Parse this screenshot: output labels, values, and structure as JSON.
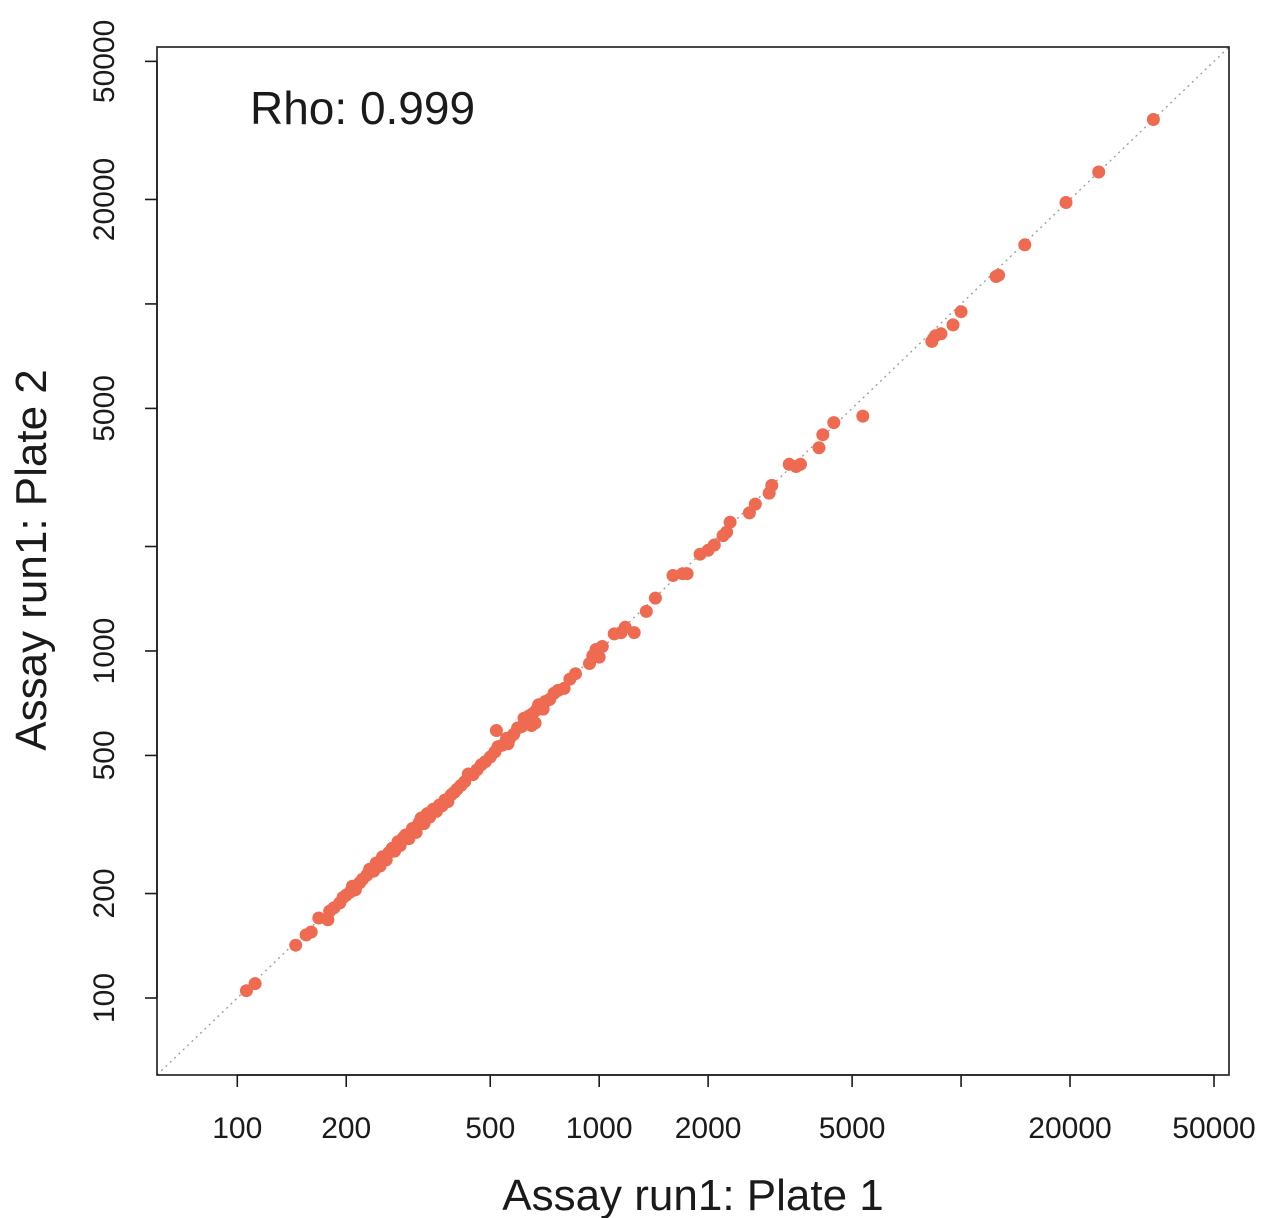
{
  "chart_data": {
    "type": "scatter",
    "xlabel": "Assay run1: Plate 1",
    "ylabel": "Assay run1: Plate 2",
    "annotation": "Rho: 0.999",
    "x_scale": "log",
    "y_scale": "log",
    "xlim": [
      60,
      55000
    ],
    "ylim": [
      60,
      55000
    ],
    "x_ticks": [
      100,
      200,
      500,
      1000,
      2000,
      5000,
      10000,
      20000,
      50000
    ],
    "x_tick_labels": [
      "100",
      "200",
      "500",
      "1000",
      "2000",
      "5000",
      "",
      "20000",
      "50000"
    ],
    "y_ticks": [
      100,
      200,
      500,
      1000,
      2000,
      5000,
      10000,
      20000,
      50000
    ],
    "y_tick_labels": [
      "100",
      "200",
      "500",
      "1000",
      "",
      "5000",
      "",
      "20000",
      "50000"
    ],
    "reference_line": "y = x (dotted)",
    "grid": false,
    "point_color": "#ee6a50",
    "points": [
      [
        106,
        105
      ],
      [
        112,
        110
      ],
      [
        145,
        142
      ],
      [
        155,
        152
      ],
      [
        160,
        155
      ],
      [
        168,
        170
      ],
      [
        178,
        168
      ],
      [
        180,
        178
      ],
      [
        185,
        182
      ],
      [
        192,
        188
      ],
      [
        196,
        195
      ],
      [
        200,
        198
      ],
      [
        205,
        202
      ],
      [
        208,
        210
      ],
      [
        212,
        205
      ],
      [
        218,
        215
      ],
      [
        222,
        220
      ],
      [
        228,
        226
      ],
      [
        232,
        235
      ],
      [
        238,
        232
      ],
      [
        242,
        245
      ],
      [
        248,
        240
      ],
      [
        252,
        255
      ],
      [
        258,
        250
      ],
      [
        262,
        262
      ],
      [
        268,
        270
      ],
      [
        272,
        265
      ],
      [
        278,
        282
      ],
      [
        282,
        275
      ],
      [
        288,
        290
      ],
      [
        292,
        295
      ],
      [
        298,
        288
      ],
      [
        305,
        308
      ],
      [
        312,
        300
      ],
      [
        318,
        320
      ],
      [
        322,
        330
      ],
      [
        328,
        318
      ],
      [
        335,
        340
      ],
      [
        340,
        332
      ],
      [
        348,
        350
      ],
      [
        355,
        345
      ],
      [
        362,
        360
      ],
      [
        368,
        358
      ],
      [
        375,
        372
      ],
      [
        382,
        368
      ],
      [
        390,
        385
      ],
      [
        398,
        392
      ],
      [
        405,
        400
      ],
      [
        415,
        410
      ],
      [
        425,
        420
      ],
      [
        435,
        442
      ],
      [
        448,
        440
      ],
      [
        460,
        455
      ],
      [
        472,
        470
      ],
      [
        485,
        480
      ],
      [
        500,
        495
      ],
      [
        515,
        512
      ],
      [
        525,
        530
      ],
      [
        540,
        535
      ],
      [
        555,
        560
      ],
      [
        565,
        558
      ],
      [
        580,
        575
      ],
      [
        595,
        600
      ],
      [
        610,
        605
      ],
      [
        625,
        620
      ],
      [
        640,
        650
      ],
      [
        655,
        660
      ],
      [
        670,
        675
      ],
      [
        690,
        700
      ],
      [
        710,
        715
      ],
      [
        730,
        725
      ],
      [
        750,
        755
      ],
      [
        520,
        590
      ],
      [
        560,
        540
      ],
      [
        620,
        640
      ],
      [
        650,
        610
      ],
      [
        665,
        620
      ],
      [
        680,
        700
      ],
      [
        700,
        680
      ],
      [
        770,
        770
      ],
      [
        800,
        780
      ],
      [
        830,
        830
      ],
      [
        860,
        860
      ],
      [
        940,
        920
      ],
      [
        960,
        970
      ],
      [
        980,
        1010
      ],
      [
        1000,
        960
      ],
      [
        1020,
        1030
      ],
      [
        1100,
        1120
      ],
      [
        1150,
        1130
      ],
      [
        1180,
        1170
      ],
      [
        1250,
        1130
      ],
      [
        1350,
        1300
      ],
      [
        1430,
        1420
      ],
      [
        1600,
        1650
      ],
      [
        1700,
        1670
      ],
      [
        1750,
        1670
      ],
      [
        1900,
        1900
      ],
      [
        2000,
        1950
      ],
      [
        2080,
        2020
      ],
      [
        2200,
        2150
      ],
      [
        2250,
        2200
      ],
      [
        2300,
        2350
      ],
      [
        2600,
        2500
      ],
      [
        2700,
        2650
      ],
      [
        2950,
        2850
      ],
      [
        3000,
        3000
      ],
      [
        3350,
        3450
      ],
      [
        3500,
        3400
      ],
      [
        3600,
        3450
      ],
      [
        4050,
        3850
      ],
      [
        4150,
        4200
      ],
      [
        4450,
        4550
      ],
      [
        5350,
        4750
      ],
      [
        8300,
        7800
      ],
      [
        8500,
        8100
      ],
      [
        8800,
        8200
      ],
      [
        9500,
        8700
      ],
      [
        10000,
        9500
      ],
      [
        12500,
        12000
      ],
      [
        12700,
        12100
      ],
      [
        15000,
        14800
      ],
      [
        19500,
        19600
      ],
      [
        24000,
        24000
      ],
      [
        34000,
        34000
      ]
    ]
  }
}
